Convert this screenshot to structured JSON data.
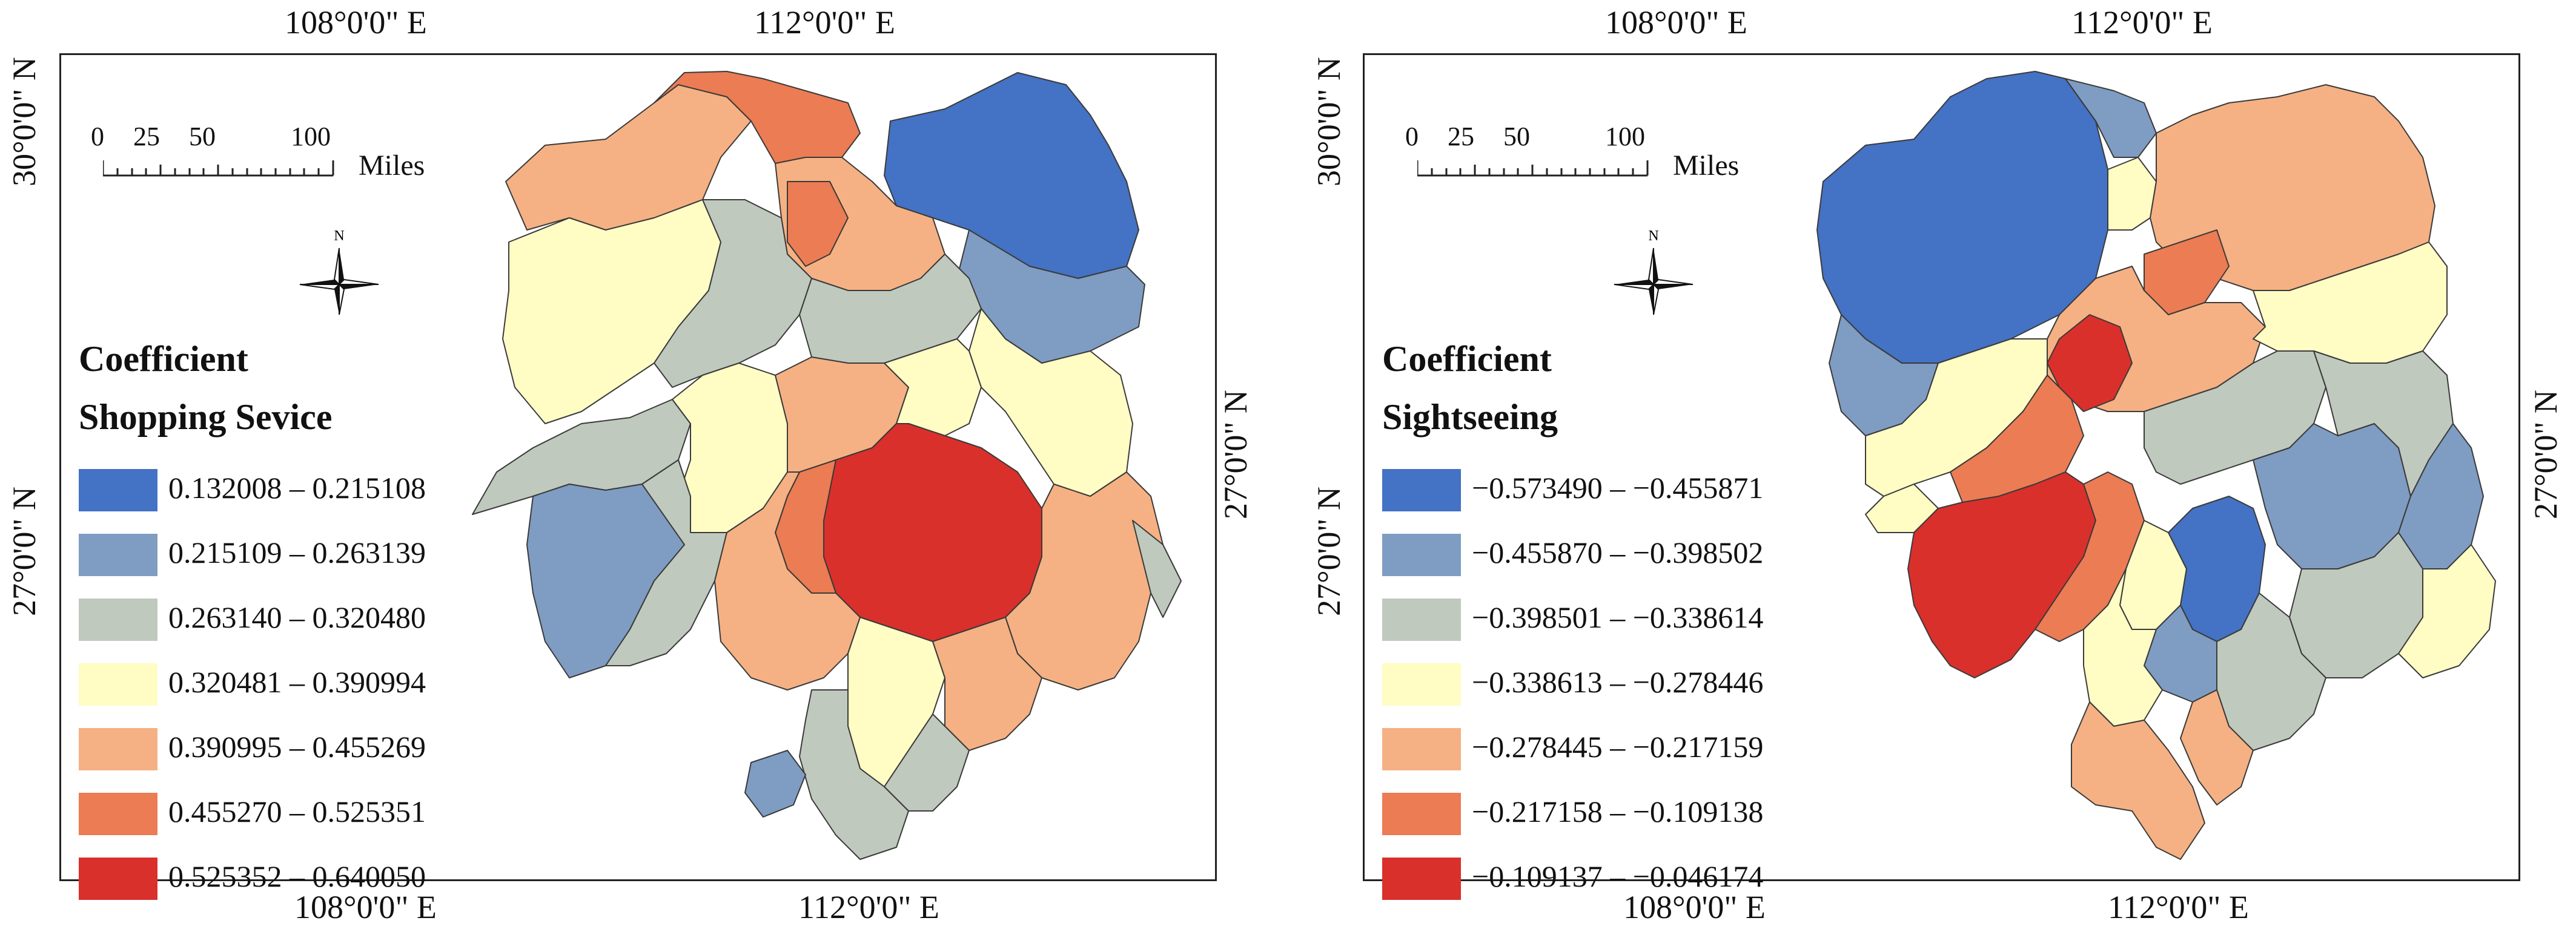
{
  "colors": {
    "c1": "#4472c4",
    "c2": "#7f9cc3",
    "c3": "#bfc9bd",
    "c4": "#fffcc4",
    "c5": "#f5b183",
    "c6": "#ec7c53",
    "c7": "#d9302c",
    "border": "#3a3a3a"
  },
  "north_label": "N",
  "maps": [
    {
      "id": "shopping",
      "top_lon": [
        "108°0'0\" E",
        "112°0'0\" E"
      ],
      "bottom_lon": [
        "108°0'0\" E",
        "112°0'0\" E"
      ],
      "left_lat": [
        "30°0'0\" N",
        "27°0'0\" N"
      ],
      "right_lat": [
        "27°0'0\" N"
      ],
      "scale": {
        "ticks": [
          "0",
          "25",
          "50",
          "100"
        ],
        "unit": "Miles"
      },
      "legend": {
        "title_line1": "Coefficient",
        "title_line2": "Shopping Sevice",
        "classes": [
          {
            "label": "0.132008 – 0.215108",
            "color": "#4472c4"
          },
          {
            "label": "0.215109 – 0.263139",
            "color": "#7f9cc3"
          },
          {
            "label": "0.263140 – 0.320480",
            "color": "#bfc9bd"
          },
          {
            "label": "0.320481 – 0.390994",
            "color": "#fffcc4"
          },
          {
            "label": "0.390995 – 0.455269",
            "color": "#f5b183"
          },
          {
            "label": "0.455270 – 0.525351",
            "color": "#ec7c53"
          },
          {
            "label": "0.525352 – 0.640050",
            "color": "#d9302c"
          }
        ]
      }
    },
    {
      "id": "sightseeing",
      "top_lon": [
        "108°0'0\" E",
        "112°0'0\" E"
      ],
      "bottom_lon": [
        "108°0'0\" E",
        "112°0'0\" E"
      ],
      "left_lat": [
        "30°0'0\" N",
        "27°0'0\" N"
      ],
      "right_lat": [
        "27°0'0\" N"
      ],
      "scale": {
        "ticks": [
          "0",
          "25",
          "50",
          "100"
        ],
        "unit": "Miles"
      },
      "legend": {
        "title_line1": "Coefficient",
        "title_line2": "Sightseeing",
        "classes": [
          {
            "label": "−0.573490 – −0.455871",
            "color": "#4472c4"
          },
          {
            "label": "−0.455870 – −0.398502",
            "color": "#7f9cc3"
          },
          {
            "label": "−0.398501 – −0.338614",
            "color": "#bfc9bd"
          },
          {
            "label": "−0.338613 – −0.278446",
            "color": "#fffcc4"
          },
          {
            "label": "−0.278445 – −0.217159",
            "color": "#f5b183"
          },
          {
            "label": "−0.217158 – −0.109138",
            "color": "#ec7c53"
          },
          {
            "label": "−0.109137 – −0.046174",
            "color": "#d9302c"
          }
        ]
      }
    }
  ]
}
